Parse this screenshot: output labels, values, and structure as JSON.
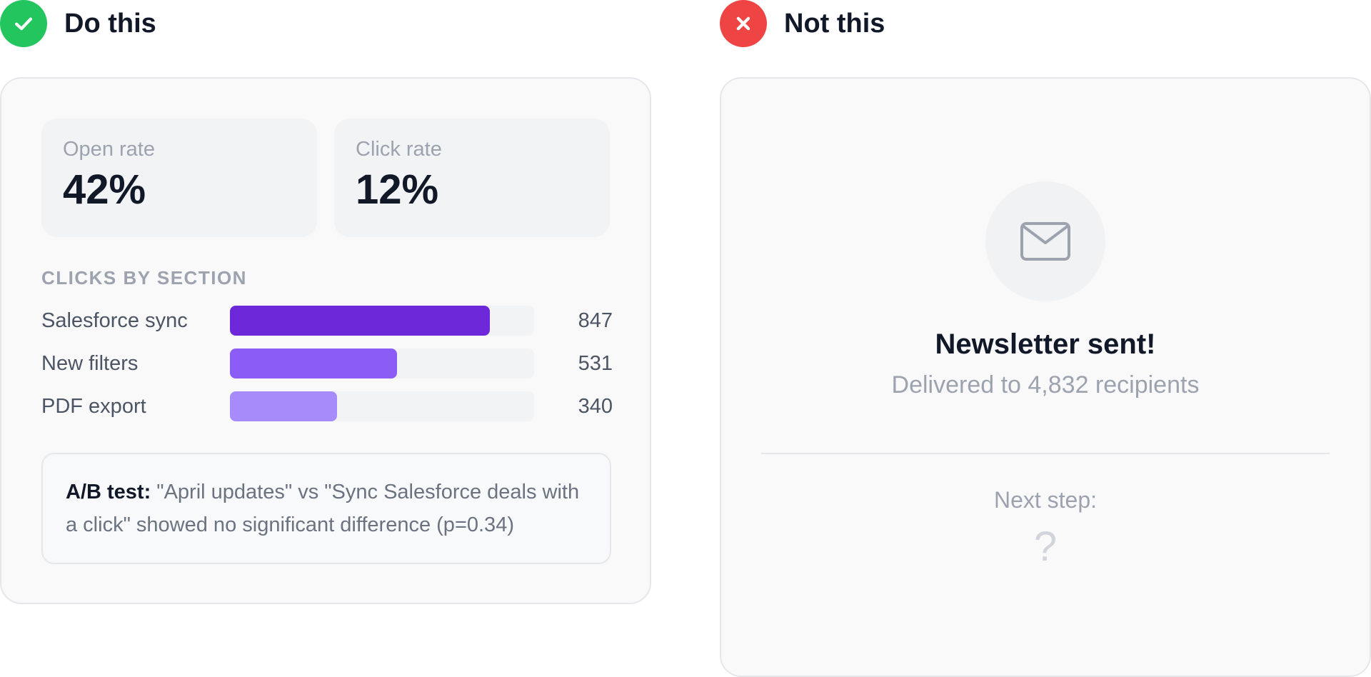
{
  "colors": {
    "good": "#22c55e",
    "bad": "#ef4444",
    "bar1": "#6d28d9",
    "bar2": "#8b5cf6",
    "bar3": "#a78bfa",
    "envelope": "#9ca3af"
  },
  "do": {
    "heading": "Do this",
    "icon": "check-icon",
    "open_rate_label": "Open rate",
    "open_rate_value": "42%",
    "click_rate_label": "Click rate",
    "click_rate_value": "12%",
    "section_title": "CLICKS BY SECTION",
    "bars": [
      {
        "label": "Salesforce sync",
        "value": "847",
        "count": 847,
        "fraction": 0.855
      },
      {
        "label": "New filters",
        "value": "531",
        "count": 531,
        "fraction": 0.55
      },
      {
        "label": "PDF export",
        "value": "340",
        "count": 340,
        "fraction": 0.352
      }
    ],
    "ab_strong": "A/B test:",
    "ab_text": " \"April updates\" vs \"Sync Salesforce deals with a click\" showed no significant difference (p=0.34)"
  },
  "not": {
    "heading": "Not this",
    "icon": "x-icon",
    "title": "Newsletter sent!",
    "subtitle": "Delivered to 4,832 recipients",
    "next_label": "Next step:",
    "next_value": "?"
  }
}
